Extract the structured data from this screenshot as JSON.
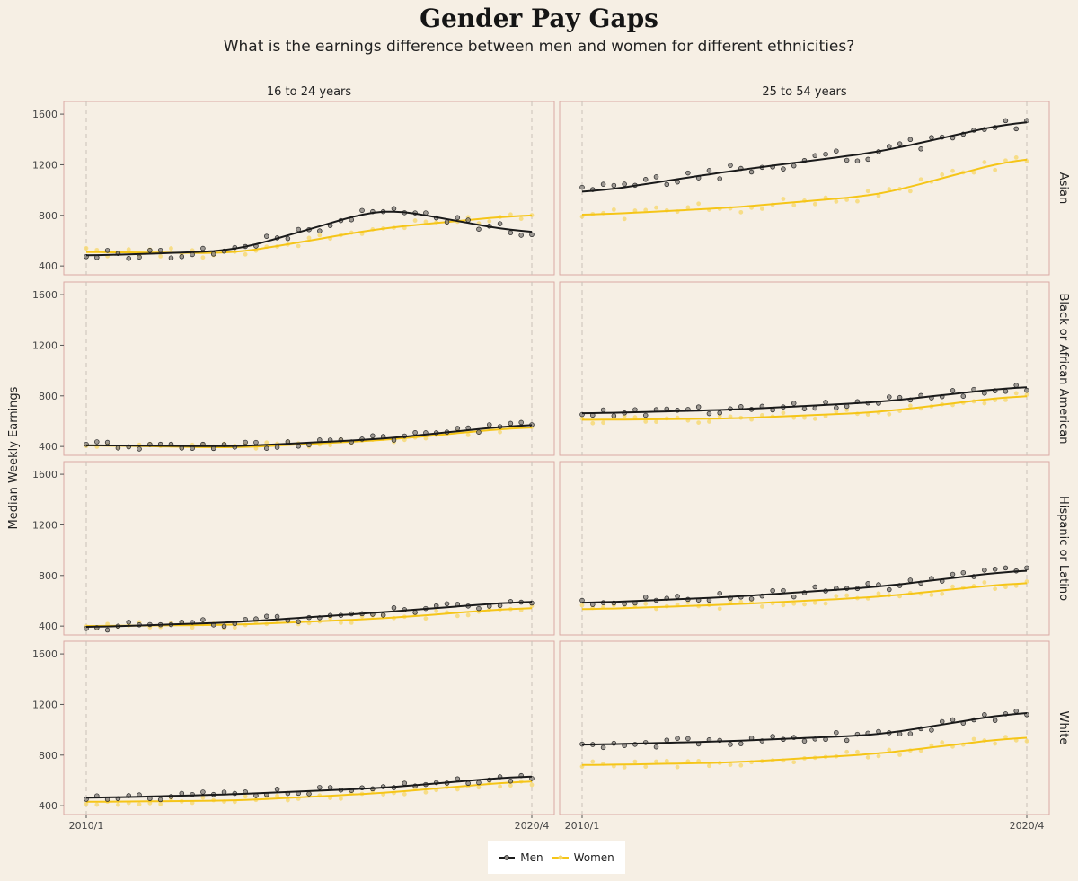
{
  "chart_data": {
    "type": "scatter",
    "title": "Gender Pay Gaps",
    "subtitle": "What is the earnings difference between men and women for different ethnicities?",
    "ylabel": "Median Weekly Earnings",
    "xlabel": "",
    "x_ticks": [
      "2010/1",
      "2020/4"
    ],
    "y_ticks": [
      400,
      800,
      1200,
      1600
    ],
    "ylim": [
      330,
      1700
    ],
    "x_range": [
      "2010/1",
      "2020/4"
    ],
    "columns": [
      "16 to 24 years",
      "25 to 54 years"
    ],
    "rows": [
      "Asian",
      "Black or African American",
      "Hispanic or Latino",
      "White"
    ],
    "legend": {
      "position": "bottom",
      "entries": [
        {
          "name": "Men",
          "color": "#1a1a1a"
        },
        {
          "name": "Women",
          "color": "#f5c518"
        }
      ]
    },
    "series_colors": {
      "men_line": "#1a1a1a",
      "men_point": "#8a8580",
      "women_line": "#f5c518",
      "women_point": "#f7d768"
    },
    "panels": [
      {
        "row": "Asian",
        "col": "16 to 24 years",
        "men": [
          480,
          520,
          860,
          650
        ],
        "women": [
          510,
          500,
          700,
          810
        ]
      },
      {
        "row": "Asian",
        "col": "25 to 54 years",
        "men": [
          970,
          1150,
          1300,
          1560
        ],
        "women": [
          800,
          860,
          960,
          1270
        ]
      },
      {
        "row": "Black or African American",
        "col": "16 to 24 years",
        "men": [
          410,
          400,
          460,
          580
        ],
        "women": [
          410,
          390,
          450,
          560
        ]
      },
      {
        "row": "Black or African American",
        "col": "25 to 54 years",
        "men": [
          660,
          690,
          750,
          880
        ],
        "women": [
          610,
          620,
          670,
          810
        ]
      },
      {
        "row": "Hispanic or Latino",
        "col": "16 to 24 years",
        "men": [
          390,
          430,
          510,
          600
        ],
        "women": [
          400,
          410,
          460,
          550
        ]
      },
      {
        "row": "Hispanic or Latino",
        "col": "25 to 54 years",
        "men": [
          580,
          630,
          710,
          850
        ],
        "women": [
          530,
          570,
          630,
          750
        ]
      },
      {
        "row": "White",
        "col": "16 to 24 years",
        "men": [
          460,
          490,
          540,
          640
        ],
        "women": [
          430,
          440,
          500,
          600
        ]
      },
      {
        "row": "White",
        "col": "25 to 54 years",
        "men": [
          880,
          910,
          960,
          1150
        ],
        "women": [
          720,
          740,
          810,
          950
        ]
      }
    ]
  }
}
